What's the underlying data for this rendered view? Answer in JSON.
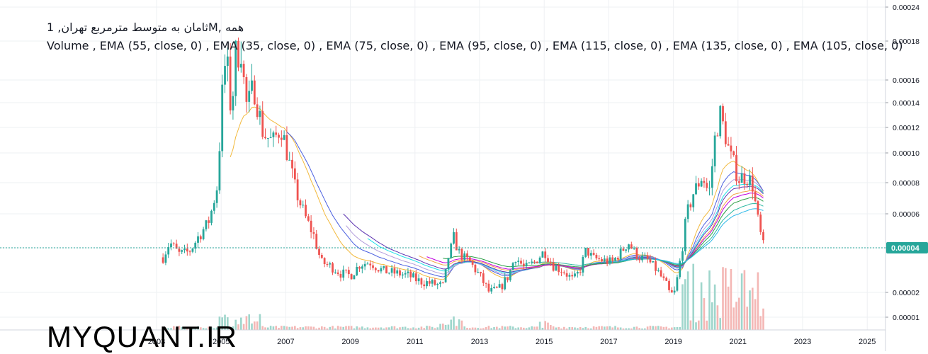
{
  "header": {
    "title": "ثامان به متوسط مترمربع تهران, 1M, همه",
    "indicators": "Volume , EMA (55, close, 0) , EMA (35, close, 0) , EMA (75, close, 0) , EMA (95, close, 0) , EMA (115, close, 0) , EMA (135, close, 0) , EMA (105, close, 0)"
  },
  "watermark": "MYQUANT.IR",
  "colors": {
    "up": "#26a69a",
    "down": "#ef5350",
    "vol_up": "#9fd6cc",
    "vol_down": "#f4b7b5",
    "price_line": "#26a69a",
    "grid": "#eef0f3"
  },
  "chart_data": {
    "type": "candlestick",
    "y_axis": {
      "ticks": [
        "0.00024",
        "0.00018",
        "0.00016",
        "0.00014",
        "0.00012",
        "0.00010",
        "0.00008",
        "0.00006",
        "0.00004",
        "0.00002",
        "0.00001"
      ],
      "scale": "log"
    },
    "x_axis": {
      "ticks": [
        "2003",
        "2005",
        "2007",
        "2009",
        "2011",
        "2013",
        "2015",
        "2017",
        "2019",
        "2021",
        "2023",
        "2025"
      ]
    },
    "last_price": "0.00004",
    "series_anchor": [
      [
        2003.2,
        3.45e-05
      ],
      [
        2003.4,
        4.3e-05
      ],
      [
        2003.7,
        3.65e-05
      ],
      [
        2004.0,
        3.75e-05
      ],
      [
        2004.3,
        4.6e-05
      ],
      [
        2004.6,
        5.4e-05
      ],
      [
        2004.9,
        8e-05
      ],
      [
        2005.0,
        0.00014
      ],
      [
        2005.15,
        0.000175
      ],
      [
        2005.3,
        0.000135
      ],
      [
        2005.45,
        0.00017
      ],
      [
        2005.6,
        0.000185
      ],
      [
        2005.8,
        0.000135
      ],
      [
        2006.0,
        0.000155
      ],
      [
        2006.15,
        0.000135
      ],
      [
        2006.3,
        0.000115
      ],
      [
        2006.6,
        0.000108
      ],
      [
        2006.85,
        0.00012
      ],
      [
        2007.0,
        0.000105
      ],
      [
        2007.3,
        7.5e-05
      ],
      [
        2007.6,
        5.8e-05
      ],
      [
        2007.9,
        4.5e-05
      ],
      [
        2008.1,
        3.2e-05
      ],
      [
        2008.4,
        3e-05
      ],
      [
        2008.7,
        2.7e-05
      ],
      [
        2009.0,
        2.6e-05
      ],
      [
        2009.3,
        3.1e-05
      ],
      [
        2009.6,
        3.2e-05
      ],
      [
        2010.0,
        2.8e-05
      ],
      [
        2010.4,
        2.7e-05
      ],
      [
        2010.8,
        2.6e-05
      ],
      [
        2011.1,
        2.4e-05
      ],
      [
        2011.5,
        2.3e-05
      ],
      [
        2011.9,
        2.2e-05
      ],
      [
        2012.0,
        3.3e-05
      ],
      [
        2012.2,
        4.5e-05
      ],
      [
        2012.4,
        3.6e-05
      ],
      [
        2012.7,
        3.2e-05
      ],
      [
        2013.0,
        2.6e-05
      ],
      [
        2013.3,
        2e-05
      ],
      [
        2013.6,
        2.1e-05
      ],
      [
        2013.9,
        2.6e-05
      ],
      [
        2014.1,
        3.5e-05
      ],
      [
        2014.4,
        2.9e-05
      ],
      [
        2014.7,
        3.2e-05
      ],
      [
        2015.0,
        3.8e-05
      ],
      [
        2015.3,
        3e-05
      ],
      [
        2015.6,
        2.8e-05
      ],
      [
        2015.9,
        2.4e-05
      ],
      [
        2016.1,
        2.8e-05
      ],
      [
        2016.3,
        3.9e-05
      ],
      [
        2016.5,
        3.4e-05
      ],
      [
        2016.8,
        3.3e-05
      ],
      [
        2017.1,
        3.2e-05
      ],
      [
        2017.4,
        3.8e-05
      ],
      [
        2017.6,
        4.3e-05
      ],
      [
        2017.9,
        3.5e-05
      ],
      [
        2018.2,
        3.3e-05
      ],
      [
        2018.5,
        2.8e-05
      ],
      [
        2018.8,
        2.2e-05
      ],
      [
        2018.9,
        1.9e-05
      ],
      [
        2019.05,
        2e-05
      ],
      [
        2019.2,
        3.2e-05
      ],
      [
        2019.4,
        5.8e-05
      ],
      [
        2019.6,
        7.2e-05
      ],
      [
        2019.9,
        8.5e-05
      ],
      [
        2020.1,
        7.2e-05
      ],
      [
        2020.3,
        0.000115
      ],
      [
        2020.45,
        0.00013
      ],
      [
        2020.6,
        0.000115
      ],
      [
        2020.75,
        9.8e-05
      ],
      [
        2020.9,
        9e-05
      ],
      [
        2021.05,
        8.2e-05
      ],
      [
        2021.25,
        8.5e-05
      ],
      [
        2021.45,
        7.8e-05
      ],
      [
        2021.6,
        5.8e-05
      ],
      [
        2021.75,
        4.2e-05
      ],
      [
        2021.8,
        4e-05
      ]
    ],
    "ema_series": [
      {
        "color": "#f2b93d",
        "start": 2005.2,
        "alpha": 0.12
      },
      {
        "color": "#4a5fe0",
        "start": 2007.0,
        "alpha": 0.09
      },
      {
        "color": "#b39ddb",
        "start": 2008.8,
        "alpha": 0.075
      },
      {
        "color": "#1fe0e8",
        "start": 2009.5,
        "alpha": 0.065
      },
      {
        "color": "#5e35b1",
        "start": 2008.7,
        "alpha": 0.06
      },
      {
        "color": "#f3a64a",
        "start": 2011.1,
        "alpha": 0.052
      },
      {
        "color": "#c000e0",
        "start": 2011.3,
        "alpha": 0.048
      },
      {
        "color": "#2e9f48",
        "start": 2011.8,
        "alpha": 0.042
      },
      {
        "color": "#2bb8a2",
        "start": 2014.6,
        "alpha": 0.035
      },
      {
        "color": "#2bb8e8",
        "start": 2016.9,
        "alpha": 0.03
      }
    ]
  }
}
